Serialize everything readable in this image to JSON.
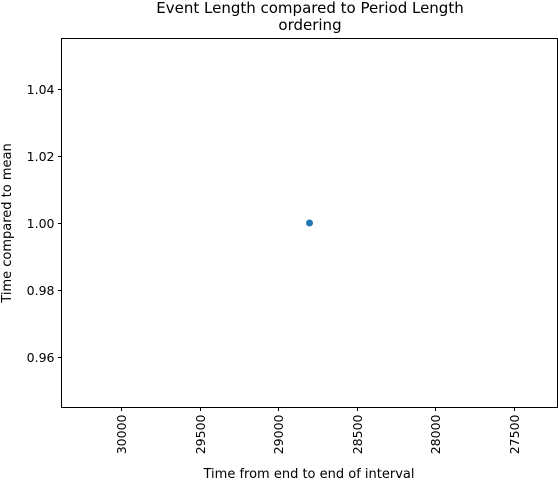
{
  "chart_data": {
    "type": "scatter",
    "title": "Event Length compared to Period Length\nordering",
    "title_lines": [
      "Event Length compared to Period Length",
      "ordering"
    ],
    "xlabel": "Time from end to end of interval",
    "ylabel": "Time compared to mean",
    "x_inverted": true,
    "xlim": [
      30380,
      27220
    ],
    "ylim": [
      0.945,
      1.055
    ],
    "x_ticks": [
      30000,
      29500,
      29000,
      28500,
      28000,
      27500
    ],
    "x_tick_labels": [
      "30000",
      "29500",
      "29000",
      "28500",
      "28000",
      "27500"
    ],
    "y_ticks": [
      0.96,
      0.98,
      1.0,
      1.02,
      1.04
    ],
    "y_tick_labels": [
      "0.96",
      "0.98",
      "1.00",
      "1.02",
      "1.04"
    ],
    "grid": false,
    "series": [
      {
        "name": "",
        "color": "#1f77b4",
        "points": [
          {
            "x": 28800,
            "y": 1.0
          }
        ]
      }
    ]
  }
}
